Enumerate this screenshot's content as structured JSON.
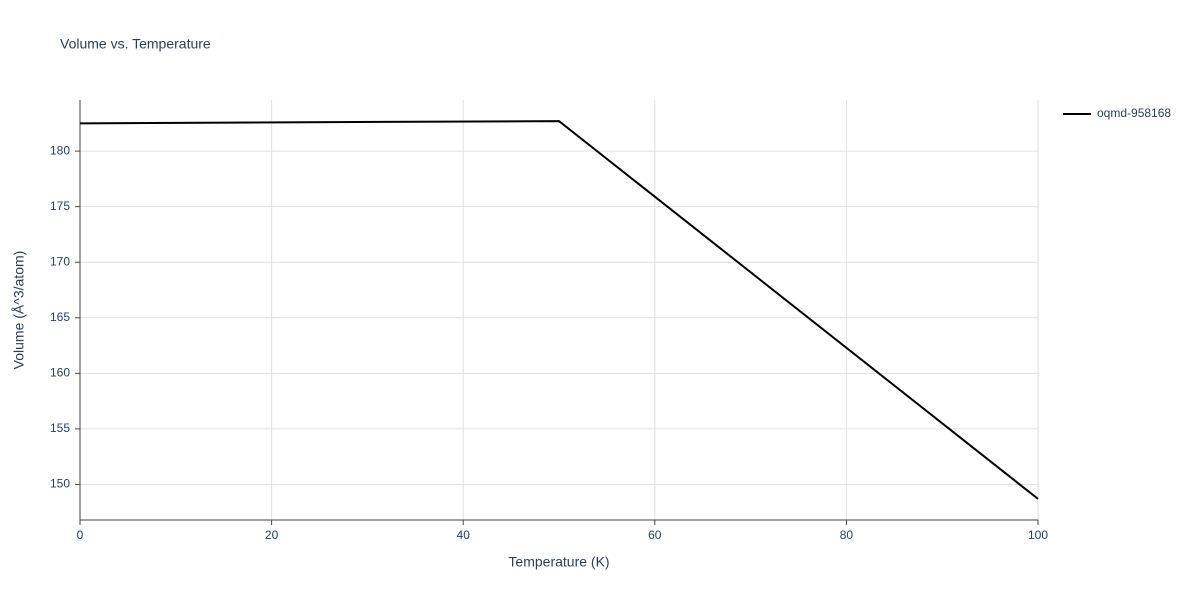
{
  "chart_data": {
    "type": "line",
    "title": "Volume vs. Temperature",
    "x_label": "Temperature (K)",
    "y_label": "Volume (Å^3/atom)",
    "x": [
      0,
      50,
      100
    ],
    "series": [
      {
        "name": "oqmd-958168",
        "color": "#000000",
        "values": [
          182.5,
          182.7,
          148.7
        ]
      }
    ],
    "xlim": [
      0,
      100
    ],
    "xticks": [
      0,
      20,
      40,
      60,
      80,
      100
    ],
    "ylim": [
      146.8,
      184.6
    ],
    "yticks": [
      150,
      155,
      160,
      165,
      170,
      175,
      180
    ],
    "grid": true,
    "legend": "right"
  }
}
